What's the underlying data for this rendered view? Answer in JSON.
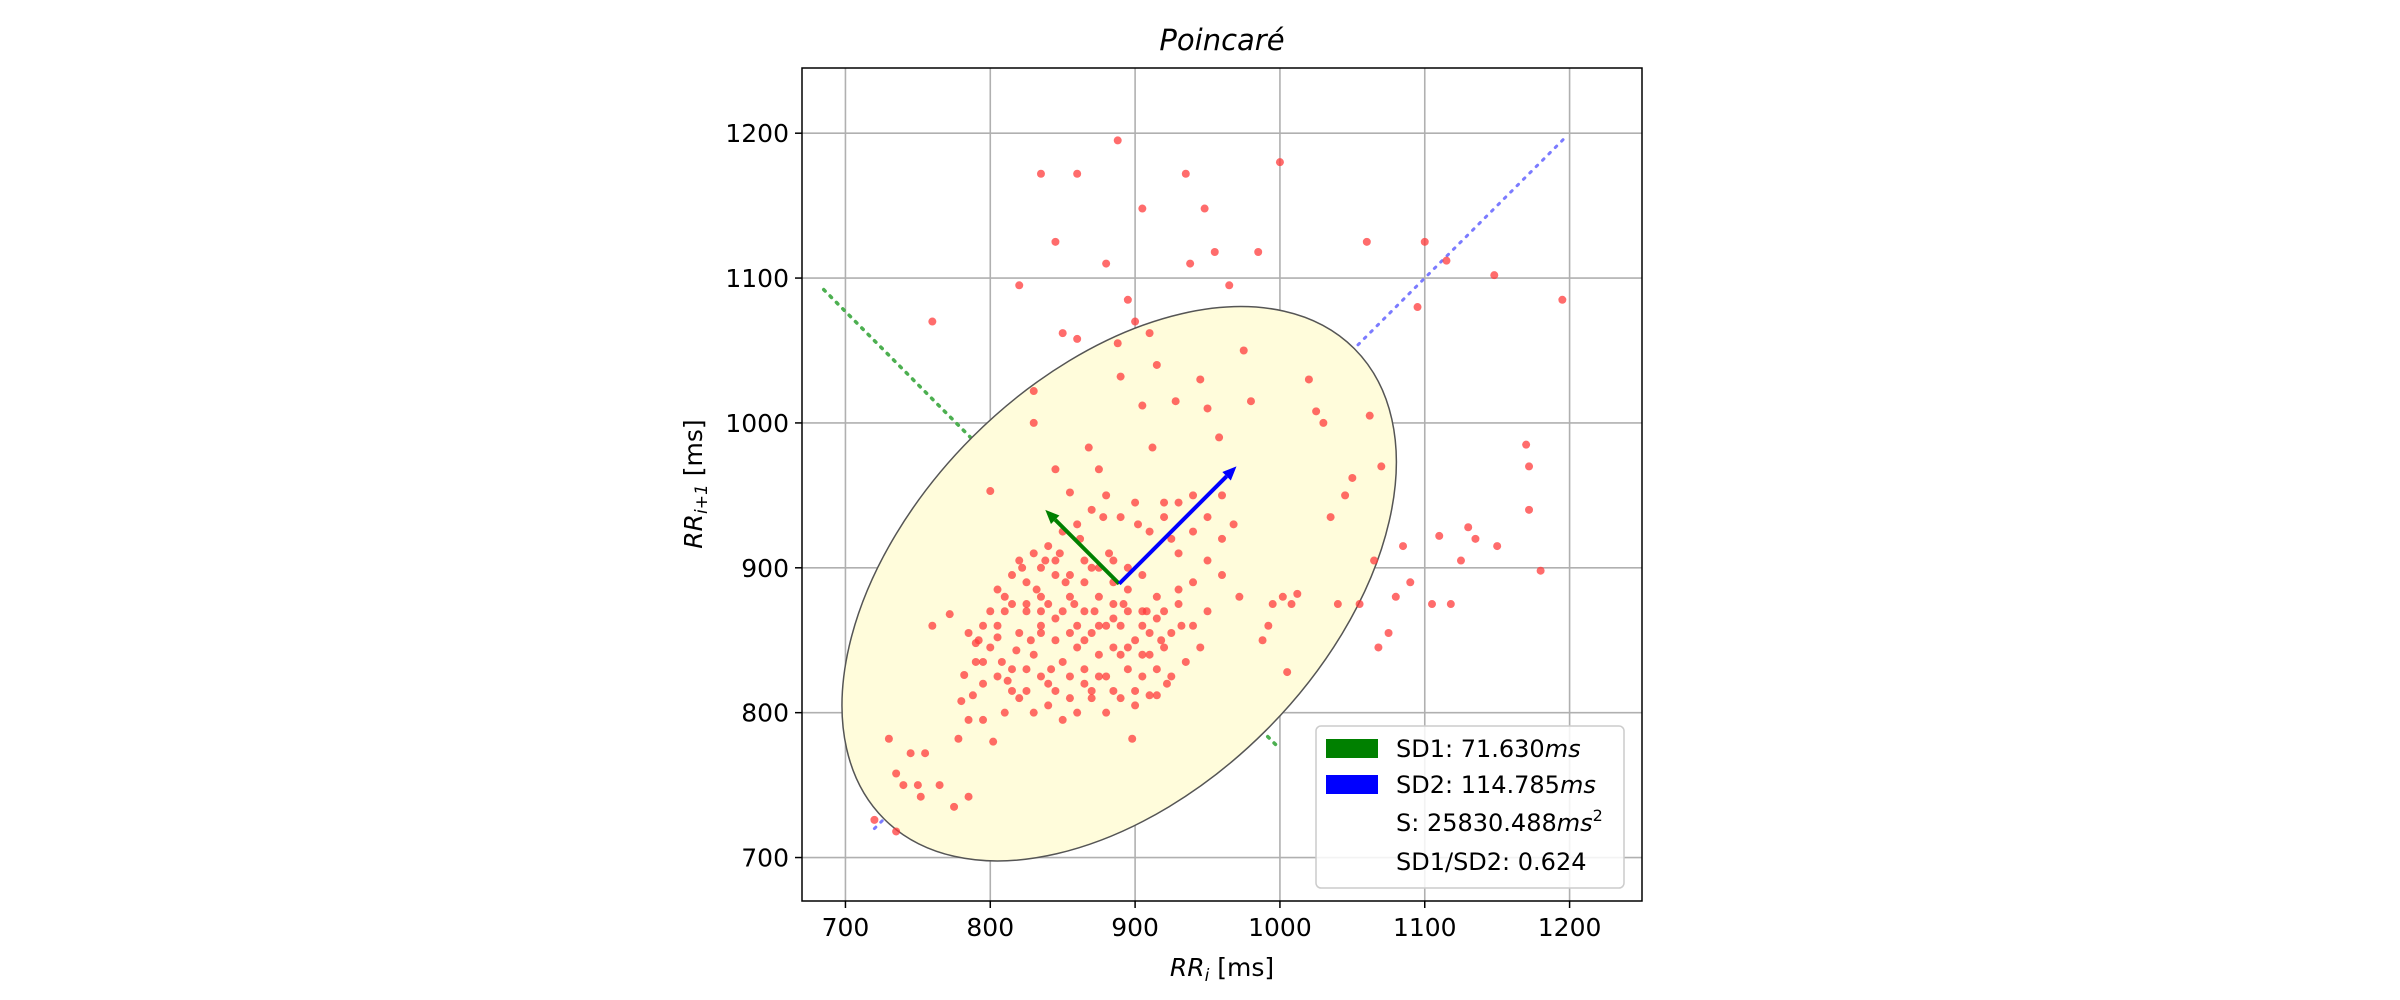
{
  "chart_data": {
    "type": "scatter",
    "title": "Poincaré",
    "xlabel": "RR_i [ms]",
    "ylabel": "RR_i+1 [ms]",
    "xlim": [
      670,
      1250
    ],
    "ylim": [
      670,
      1245
    ],
    "xticks": [
      700,
      800,
      900,
      1000,
      1100,
      1200
    ],
    "yticks": [
      700,
      800,
      900,
      1000,
      1100,
      1200
    ],
    "grid": true,
    "legend_position": "lower-right",
    "colors": {
      "points": "#ff3b3b",
      "ellipse_fill": "#fffcdb",
      "ellipse_edge": "#555555",
      "sd1": "#008000",
      "sd2": "#0000ff",
      "identity_line": "#7b7bff",
      "perpendicular_line": "#4caf50"
    },
    "center": [
      889,
      889
    ],
    "sd1": 71.63,
    "sd2": 114.785,
    "sd1_line": {
      "from": [
        685,
        1092
      ],
      "to": [
        1000,
        775
      ]
    },
    "sd2_line": {
      "from": [
        720,
        720
      ],
      "to": [
        1197,
        1197
      ]
    },
    "sd1_arrow_tip": [
      838,
      940
    ],
    "sd2_arrow_tip": [
      970,
      970
    ],
    "legend": {
      "sd1": {
        "prefix": "SD1: 71.630",
        "unit": "ms"
      },
      "sd2": {
        "prefix": "SD2: 114.785",
        "unit": "ms"
      },
      "s": {
        "prefix": "S: 25830.488",
        "unit": "ms",
        "sup": "2"
      },
      "ratio": "SD1/SD2: 0.624"
    },
    "points": [
      [
        720,
        726
      ],
      [
        730,
        782
      ],
      [
        735,
        718
      ],
      [
        735,
        758
      ],
      [
        740,
        750
      ],
      [
        745,
        772
      ],
      [
        750,
        750
      ],
      [
        752,
        742
      ],
      [
        755,
        772
      ],
      [
        760,
        1070
      ],
      [
        760,
        860
      ],
      [
        765,
        750
      ],
      [
        772,
        868
      ],
      [
        775,
        735
      ],
      [
        778,
        782
      ],
      [
        780,
        808
      ],
      [
        782,
        826
      ],
      [
        785,
        742
      ],
      [
        785,
        795
      ],
      [
        788,
        812
      ],
      [
        790,
        835
      ],
      [
        792,
        850
      ],
      [
        795,
        835
      ],
      [
        795,
        795
      ],
      [
        800,
        953
      ],
      [
        802,
        780
      ],
      [
        805,
        852
      ],
      [
        808,
        835
      ],
      [
        810,
        800
      ],
      [
        812,
        822
      ],
      [
        815,
        875
      ],
      [
        818,
        843
      ],
      [
        820,
        1095
      ],
      [
        822,
        900
      ],
      [
        825,
        870
      ],
      [
        828,
        850
      ],
      [
        830,
        1022
      ],
      [
        830,
        1000
      ],
      [
        832,
        885
      ],
      [
        835,
        1172
      ],
      [
        835,
        860
      ],
      [
        838,
        905
      ],
      [
        840,
        875
      ],
      [
        842,
        830
      ],
      [
        845,
        1125
      ],
      [
        845,
        968
      ],
      [
        848,
        910
      ],
      [
        850,
        1062
      ],
      [
        852,
        890
      ],
      [
        855,
        952
      ],
      [
        858,
        875
      ],
      [
        860,
        1172
      ],
      [
        860,
        1058
      ],
      [
        862,
        920
      ],
      [
        865,
        850
      ],
      [
        868,
        983
      ],
      [
        870,
        900
      ],
      [
        872,
        870
      ],
      [
        875,
        968
      ],
      [
        878,
        935
      ],
      [
        880,
        1110
      ],
      [
        882,
        910
      ],
      [
        885,
        890
      ],
      [
        888,
        1195
      ],
      [
        888,
        1055
      ],
      [
        890,
        1032
      ],
      [
        892,
        875
      ],
      [
        895,
        1085
      ],
      [
        898,
        782
      ],
      [
        900,
        1070
      ],
      [
        902,
        930
      ],
      [
        905,
        1148
      ],
      [
        905,
        1012
      ],
      [
        908,
        870
      ],
      [
        910,
        1062
      ],
      [
        912,
        983
      ],
      [
        915,
        1040
      ],
      [
        918,
        850
      ],
      [
        920,
        945
      ],
      [
        922,
        820
      ],
      [
        925,
        920
      ],
      [
        928,
        1015
      ],
      [
        930,
        885
      ],
      [
        932,
        860
      ],
      [
        935,
        1172
      ],
      [
        938,
        1110
      ],
      [
        940,
        950
      ],
      [
        945,
        1030
      ],
      [
        948,
        1148
      ],
      [
        950,
        1010
      ],
      [
        955,
        1118
      ],
      [
        958,
        990
      ],
      [
        960,
        950
      ],
      [
        965,
        1095
      ],
      [
        968,
        930
      ],
      [
        972,
        880
      ],
      [
        975,
        1050
      ],
      [
        980,
        1015
      ],
      [
        985,
        1118
      ],
      [
        988,
        850
      ],
      [
        992,
        860
      ],
      [
        995,
        875
      ],
      [
        1000,
        1180
      ],
      [
        1002,
        880
      ],
      [
        1005,
        828
      ],
      [
        1008,
        875
      ],
      [
        1012,
        882
      ],
      [
        1020,
        1030
      ],
      [
        1025,
        1008
      ],
      [
        1030,
        1000
      ],
      [
        1035,
        935
      ],
      [
        1040,
        875
      ],
      [
        1045,
        950
      ],
      [
        1050,
        962
      ],
      [
        1055,
        875
      ],
      [
        1060,
        1125
      ],
      [
        1062,
        1005
      ],
      [
        1065,
        905
      ],
      [
        1068,
        845
      ],
      [
        1070,
        970
      ],
      [
        1075,
        855
      ],
      [
        1080,
        880
      ],
      [
        1085,
        915
      ],
      [
        1090,
        890
      ],
      [
        1095,
        1080
      ],
      [
        1100,
        1125
      ],
      [
        1105,
        875
      ],
      [
        1110,
        922
      ],
      [
        1115,
        1112
      ],
      [
        1118,
        875
      ],
      [
        1125,
        905
      ],
      [
        1130,
        928
      ],
      [
        1135,
        920
      ],
      [
        1148,
        1102
      ],
      [
        1150,
        915
      ],
      [
        1170,
        985
      ],
      [
        1172,
        970
      ],
      [
        1172,
        940
      ],
      [
        1180,
        898
      ],
      [
        1195,
        1085
      ],
      [
        800,
        845
      ],
      [
        805,
        860
      ],
      [
        810,
        870
      ],
      [
        815,
        830
      ],
      [
        820,
        855
      ],
      [
        825,
        815
      ],
      [
        830,
        840
      ],
      [
        835,
        870
      ],
      [
        840,
        820
      ],
      [
        845,
        850
      ],
      [
        850,
        835
      ],
      [
        855,
        810
      ],
      [
        860,
        845
      ],
      [
        865,
        830
      ],
      [
        870,
        815
      ],
      [
        875,
        840
      ],
      [
        880,
        825
      ],
      [
        885,
        845
      ],
      [
        890,
        860
      ],
      [
        895,
        830
      ],
      [
        900,
        815
      ],
      [
        905,
        840
      ],
      [
        910,
        855
      ],
      [
        915,
        830
      ],
      [
        920,
        845
      ],
      [
        805,
        885
      ],
      [
        815,
        895
      ],
      [
        825,
        890
      ],
      [
        835,
        880
      ],
      [
        845,
        895
      ],
      [
        855,
        880
      ],
      [
        865,
        890
      ],
      [
        875,
        880
      ],
      [
        885,
        875
      ],
      [
        895,
        885
      ],
      [
        905,
        870
      ],
      [
        915,
        880
      ],
      [
        920,
        870
      ],
      [
        835,
        900
      ],
      [
        845,
        905
      ],
      [
        855,
        895
      ],
      [
        865,
        905
      ],
      [
        875,
        900
      ],
      [
        885,
        905
      ],
      [
        895,
        900
      ],
      [
        905,
        895
      ],
      [
        850,
        870
      ],
      [
        860,
        860
      ],
      [
        870,
        855
      ],
      [
        880,
        860
      ],
      [
        890,
        840
      ],
      [
        900,
        850
      ],
      [
        910,
        840
      ],
      [
        820,
        810
      ],
      [
        830,
        800
      ],
      [
        840,
        805
      ],
      [
        850,
        795
      ],
      [
        860,
        800
      ],
      [
        870,
        810
      ],
      [
        880,
        800
      ],
      [
        890,
        810
      ],
      [
        900,
        805
      ],
      [
        910,
        812
      ],
      [
        825,
        875
      ],
      [
        835,
        855
      ],
      [
        845,
        865
      ],
      [
        855,
        855
      ],
      [
        865,
        870
      ],
      [
        875,
        860
      ],
      [
        885,
        865
      ],
      [
        895,
        870
      ],
      [
        905,
        860
      ],
      [
        915,
        865
      ],
      [
        925,
        855
      ],
      [
        930,
        875
      ],
      [
        940,
        860
      ],
      [
        950,
        870
      ],
      [
        940,
        890
      ],
      [
        950,
        905
      ],
      [
        960,
        895
      ],
      [
        930,
        910
      ],
      [
        940,
        925
      ],
      [
        950,
        935
      ],
      [
        960,
        920
      ],
      [
        910,
        925
      ],
      [
        920,
        935
      ],
      [
        930,
        945
      ],
      [
        900,
        945
      ],
      [
        890,
        935
      ],
      [
        880,
        950
      ],
      [
        870,
        940
      ],
      [
        860,
        930
      ],
      [
        850,
        925
      ],
      [
        840,
        915
      ],
      [
        830,
        910
      ],
      [
        820,
        905
      ],
      [
        810,
        880
      ],
      [
        800,
        870
      ],
      [
        795,
        860
      ],
      [
        790,
        848
      ],
      [
        785,
        855
      ],
      [
        795,
        820
      ],
      [
        805,
        825
      ],
      [
        815,
        815
      ],
      [
        825,
        830
      ],
      [
        835,
        825
      ],
      [
        845,
        815
      ],
      [
        855,
        825
      ],
      [
        865,
        820
      ],
      [
        875,
        825
      ],
      [
        885,
        815
      ],
      [
        895,
        845
      ],
      [
        905,
        825
      ],
      [
        915,
        812
      ],
      [
        925,
        825
      ],
      [
        935,
        835
      ],
      [
        945,
        845
      ]
    ]
  }
}
